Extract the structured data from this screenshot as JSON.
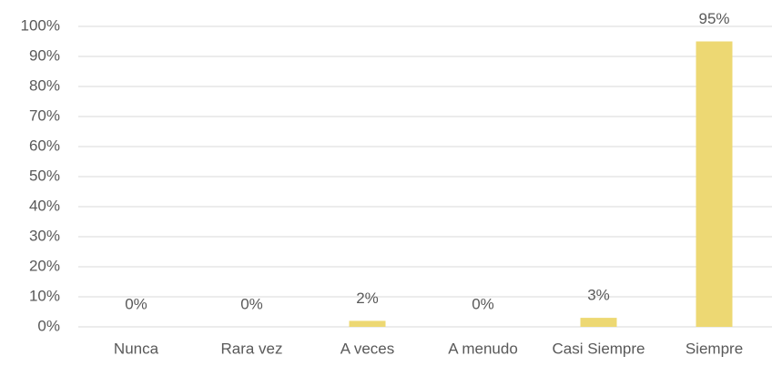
{
  "chart_data": {
    "type": "bar",
    "categories": [
      "Nunca",
      "Rara vez",
      "A veces",
      "A menudo",
      "Casi Siempre",
      "Siempre"
    ],
    "values": [
      0,
      0,
      2,
      0,
      3,
      95
    ],
    "value_labels": [
      "0%",
      "0%",
      "2%",
      "0%",
      "3%",
      "95%"
    ],
    "color": "#edd873",
    "ylim": [
      0,
      100
    ],
    "yticks": [
      {
        "value": 0,
        "label": "0%"
      },
      {
        "value": 10,
        "label": "10%"
      },
      {
        "value": 20,
        "label": "20%"
      },
      {
        "value": 30,
        "label": "30%"
      },
      {
        "value": 40,
        "label": "40%"
      },
      {
        "value": 50,
        "label": "50%"
      },
      {
        "value": 60,
        "label": "60%"
      },
      {
        "value": 70,
        "label": "70%"
      },
      {
        "value": 80,
        "label": "80%"
      },
      {
        "value": 90,
        "label": "90%"
      },
      {
        "value": 100,
        "label": "100%"
      }
    ],
    "grid": true
  }
}
